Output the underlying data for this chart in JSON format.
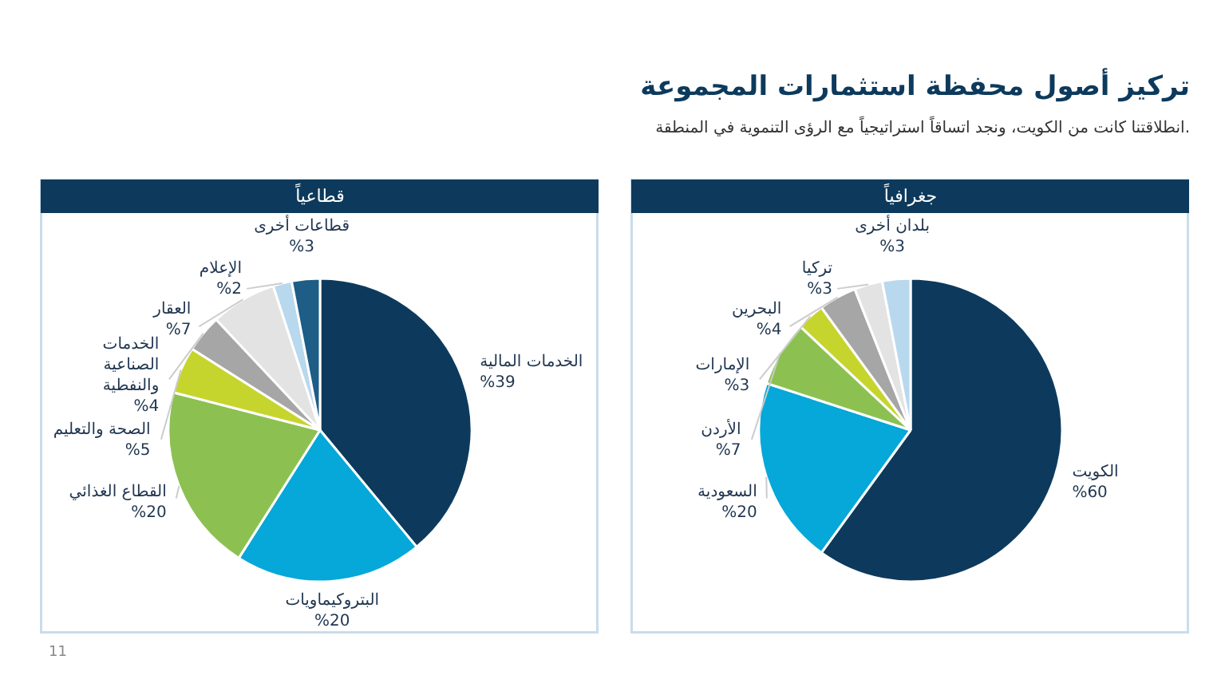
{
  "chart_data": [
    {
      "type": "pie",
      "title": "قطاعياً",
      "annotations": [
        "تركيز أصول محفظة استثمارات المجموعة",
        "انطلاقتنا كانت من الكويت، ونجد اتساقاً استراتيجياً مع الرؤى التنموية في المنطقة.",
        "11"
      ],
      "categories": [
        "الخدمات المالية",
        "البتروكيماويات",
        "القطاع الغذائي",
        "الصحة والتعليم",
        "الخدمات الصناعية والنفطية",
        "العقار",
        "الإعلام",
        "قطاعات أخرى"
      ],
      "values": [
        39,
        20,
        20,
        5,
        4,
        7,
        2,
        3
      ],
      "value_labels": [
        "%39",
        "%20",
        "%20",
        "%5",
        "%4",
        "%7",
        "%2",
        "%3"
      ],
      "colors": [
        "#0d3a5c",
        "#05a8d8",
        "#8cc152",
        "#c6d52e",
        "#a6a6a6",
        "#e3e3e3",
        "#b8d8ee",
        "#1d5d86"
      ]
    },
    {
      "type": "pie",
      "title": "جغرافياً",
      "categories": [
        "الكويت",
        "السعودية",
        "الأردن",
        "الإمارات",
        "البحرين",
        "تركيا",
        "بلدان أخرى"
      ],
      "values": [
        60,
        20,
        7,
        3,
        4,
        3,
        3
      ],
      "value_labels": [
        "%60",
        "%20",
        "%7",
        "%3",
        "%4",
        "%3",
        "%3"
      ],
      "colors": [
        "#0d3a5c",
        "#05a8d8",
        "#8cc152",
        "#c6d52e",
        "#a6a6a6",
        "#e3e3e3",
        "#b8d8ee"
      ]
    }
  ]
}
